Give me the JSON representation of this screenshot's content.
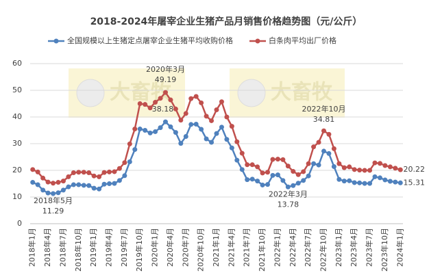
{
  "chart_data": {
    "type": "line",
    "title": "2018-2024年屠宰企业生猪产品月销售价格趋势图（元/公斤）",
    "watermark": "大畜牧",
    "categories": [
      "2018年1月",
      null,
      null,
      "2018年4月",
      null,
      null,
      "2018年7月",
      null,
      null,
      "2018年10月",
      null,
      null,
      "2019年1月",
      null,
      null,
      "2019年4月",
      null,
      null,
      "2019年7月",
      null,
      null,
      "2019年10月",
      null,
      null,
      "2020年1月",
      null,
      null,
      "2020年4月",
      null,
      null,
      "2020年7月",
      null,
      null,
      "2020年10月",
      null,
      null,
      "2021年1月",
      null,
      null,
      "2021年4月",
      null,
      null,
      "2021年7月",
      null,
      null,
      "2021年10月",
      null,
      null,
      "2022年1月",
      null,
      null,
      "2022年4月",
      null,
      null,
      "2022年7月",
      null,
      null,
      "2022年10月",
      null,
      null,
      "2023年1月",
      null,
      null,
      "2023年4月",
      null,
      null,
      "2023年7月",
      null,
      null,
      "2023年10月",
      null,
      null,
      "2024年1月"
    ],
    "series": [
      {
        "name": "全国规模以上生猪定点屠宰企业生猪平均收购价格",
        "color": "#4f81bd",
        "values": [
          15.5,
          14.6,
          12.6,
          11.5,
          11.29,
          11.6,
          12.6,
          13.8,
          14.6,
          14.6,
          14.4,
          14.3,
          13.3,
          13.0,
          14.8,
          15.0,
          15.1,
          16.2,
          18.0,
          23.2,
          27.8,
          35.5,
          35.0,
          34.0,
          34.5,
          36.0,
          38.18,
          36.3,
          34.2,
          30.1,
          32.7,
          37.2,
          37.3,
          35.4,
          31.8,
          30.5,
          33.8,
          36.2,
          31.6,
          28.4,
          23.8,
          20.3,
          16.5,
          16.7,
          16.0,
          14.5,
          14.7,
          18.1,
          18.3,
          16.2,
          13.78,
          14.3,
          15.2,
          16.2,
          17.9,
          22.5,
          22.0,
          27.2,
          26.3,
          21.4,
          16.6,
          16.0,
          16.1,
          15.4,
          15.3,
          15.1,
          15.1,
          17.6,
          17.2,
          16.4,
          15.9,
          15.6,
          15.31
        ],
        "value_labels": [
          null,
          null,
          null,
          null,
          "11.29",
          null,
          null,
          null,
          null,
          null,
          null,
          null,
          null,
          null,
          null,
          null,
          null,
          null,
          null,
          null,
          null,
          null,
          null,
          null,
          null,
          null,
          "38.18",
          null,
          null,
          null,
          null,
          null,
          null,
          null,
          null,
          null,
          null,
          null,
          null,
          null,
          null,
          null,
          null,
          null,
          null,
          null,
          null,
          null,
          null,
          null,
          "13.78",
          null,
          null,
          null,
          null,
          null,
          null,
          null,
          null,
          null,
          null,
          null,
          null,
          null,
          null,
          null,
          null,
          null,
          null,
          null,
          null,
          null,
          "15.31"
        ]
      },
      {
        "name": "白条肉平均出厂价格",
        "color": "#c0504d",
        "values": [
          20.3,
          19.4,
          17.1,
          15.6,
          15.2,
          15.5,
          16.0,
          17.6,
          19.1,
          19.3,
          19.3,
          19.1,
          17.9,
          17.6,
          19.2,
          19.4,
          19.5,
          20.7,
          22.9,
          29.9,
          35.5,
          45.0,
          44.7,
          43.4,
          45.5,
          47.0,
          49.19,
          46.4,
          43.0,
          38.8,
          41.3,
          46.9,
          47.7,
          45.3,
          40.3,
          38.6,
          42.7,
          45.7,
          40.0,
          36.5,
          30.7,
          26.4,
          22.1,
          22.1,
          21.3,
          19.0,
          19.3,
          24.1,
          24.2,
          24.0,
          21.6,
          19.6,
          18.4,
          19.5,
          22.5,
          28.8,
          30.5,
          34.81,
          33.5,
          28.1,
          22.5,
          21.0,
          21.3,
          20.3,
          20.1,
          20.0,
          20.0,
          22.8,
          22.6,
          21.8,
          21.3,
          20.8,
          20.22
        ],
        "value_labels": [
          null,
          null,
          null,
          null,
          null,
          null,
          null,
          null,
          null,
          null,
          null,
          null,
          null,
          null,
          null,
          null,
          null,
          null,
          null,
          null,
          null,
          null,
          null,
          null,
          null,
          null,
          "49.19",
          null,
          null,
          null,
          null,
          null,
          null,
          null,
          null,
          null,
          null,
          null,
          null,
          null,
          null,
          null,
          null,
          null,
          null,
          null,
          null,
          null,
          null,
          null,
          null,
          null,
          null,
          null,
          null,
          null,
          null,
          "34.81",
          null,
          null,
          null,
          null,
          null,
          null,
          null,
          null,
          null,
          null,
          null,
          null,
          null,
          null,
          "20.22"
        ]
      }
    ],
    "annotations": [
      "2018年5月",
      "2020年3月",
      "2022年3月",
      "2022年10月"
    ],
    "ylim": [
      0,
      60
    ],
    "yticks": [
      0,
      10,
      20,
      30,
      40,
      50,
      60
    ],
    "grid": true
  }
}
